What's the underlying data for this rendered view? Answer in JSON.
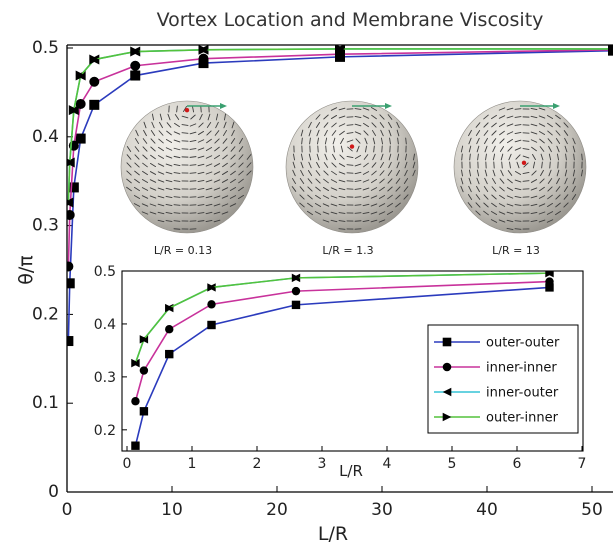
{
  "colors": {
    "outer_outer": "#2b3bbd",
    "inner_inner": "#c8329b",
    "inner_outer": "#35c3d6",
    "outer_inner": "#54c23c",
    "sphere_fill": "#d6d3cc",
    "vortex_dot": "#d01818",
    "arrow": "#3aa070"
  },
  "chart_data": [
    {
      "type": "line",
      "title": "Vortex Location and Membrane Viscosity",
      "xlabel": "L/R",
      "ylabel": "θ/π",
      "xlim": [
        0,
        52
      ],
      "ylim": [
        0,
        0.5
      ],
      "xticks": [
        "0",
        "10",
        "20",
        "30",
        "40",
        "50"
      ],
      "yticks": [
        "0",
        "0.1",
        "0.2",
        "0.3",
        "0.4",
        "0.5"
      ],
      "series": [
        {
          "name": "outer-outer",
          "color_key": "outer_outer",
          "marker": "square",
          "x": [
            0.13,
            0.26,
            0.65,
            1.3,
            2.6,
            6.5,
            13,
            26,
            52
          ],
          "y": [
            0.17,
            0.235,
            0.343,
            0.398,
            0.436,
            0.469,
            0.483,
            0.49,
            0.497
          ]
        },
        {
          "name": "inner-inner",
          "color_key": "inner_inner",
          "marker": "circle",
          "x": [
            0.13,
            0.26,
            0.65,
            1.3,
            2.6,
            6.5,
            13,
            26,
            52
          ],
          "y": [
            0.254,
            0.312,
            0.39,
            0.437,
            0.462,
            0.48,
            0.488,
            0.493,
            0.498
          ]
        },
        {
          "name": "inner-outer",
          "color_key": "inner_outer",
          "marker": "triangle-left",
          "x": [
            0.13,
            0.26,
            0.65,
            1.3,
            2.6,
            6.5,
            13,
            26,
            52
          ],
          "y": [
            0.326,
            0.371,
            0.43,
            0.469,
            0.487,
            0.496,
            0.498,
            0.499,
            0.499
          ]
        },
        {
          "name": "outer-inner",
          "color_key": "outer_inner",
          "marker": "triangle-right",
          "x": [
            0.13,
            0.26,
            0.65,
            1.3,
            2.6,
            6.5,
            13,
            26,
            52
          ],
          "y": [
            0.326,
            0.371,
            0.43,
            0.469,
            0.487,
            0.496,
            0.498,
            0.499,
            0.499
          ]
        }
      ]
    },
    {
      "type": "line",
      "xlabel": "L/R",
      "xlim": [
        0,
        7
      ],
      "ylim": [
        0.16,
        0.5
      ],
      "xticks": [
        "0",
        "1",
        "2",
        "3",
        "4",
        "5",
        "6",
        "7"
      ],
      "yticks": [
        "0.2",
        "0.3",
        "0.4",
        "0.5"
      ],
      "legend": "center-right",
      "series_ref": "same as main chart (x ≤ 7)"
    }
  ],
  "spheres": [
    {
      "label": "L/R = 0.13",
      "vortex_theta_over_pi": 0.17
    },
    {
      "label": "L/R = 1.3",
      "vortex_theta_over_pi": 0.4
    },
    {
      "label": "L/R = 13",
      "vortex_theta_over_pi": 0.48
    }
  ]
}
